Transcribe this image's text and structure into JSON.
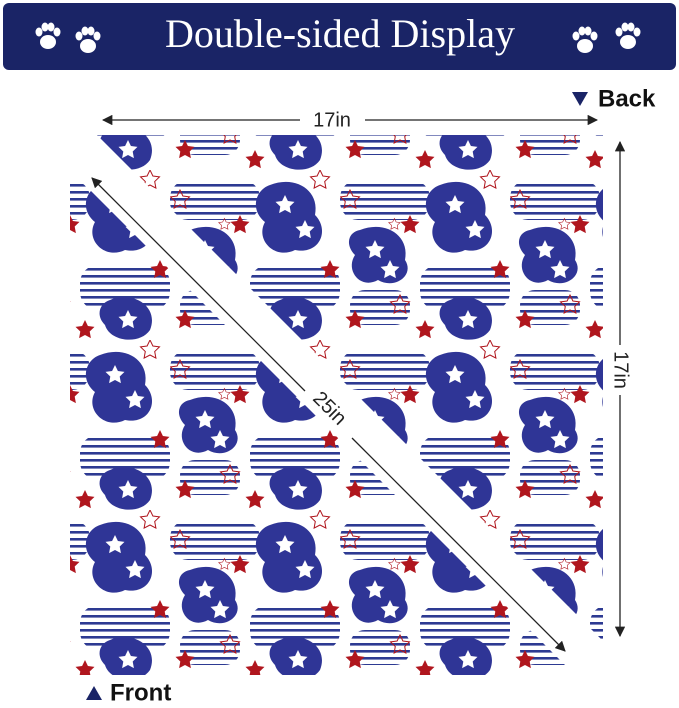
{
  "header": {
    "title": "Double-sided Display"
  },
  "back": {
    "label": "Back",
    "width": "17in",
    "height": "17in"
  },
  "front": {
    "label": "Front",
    "diagonal": "25in"
  }
}
